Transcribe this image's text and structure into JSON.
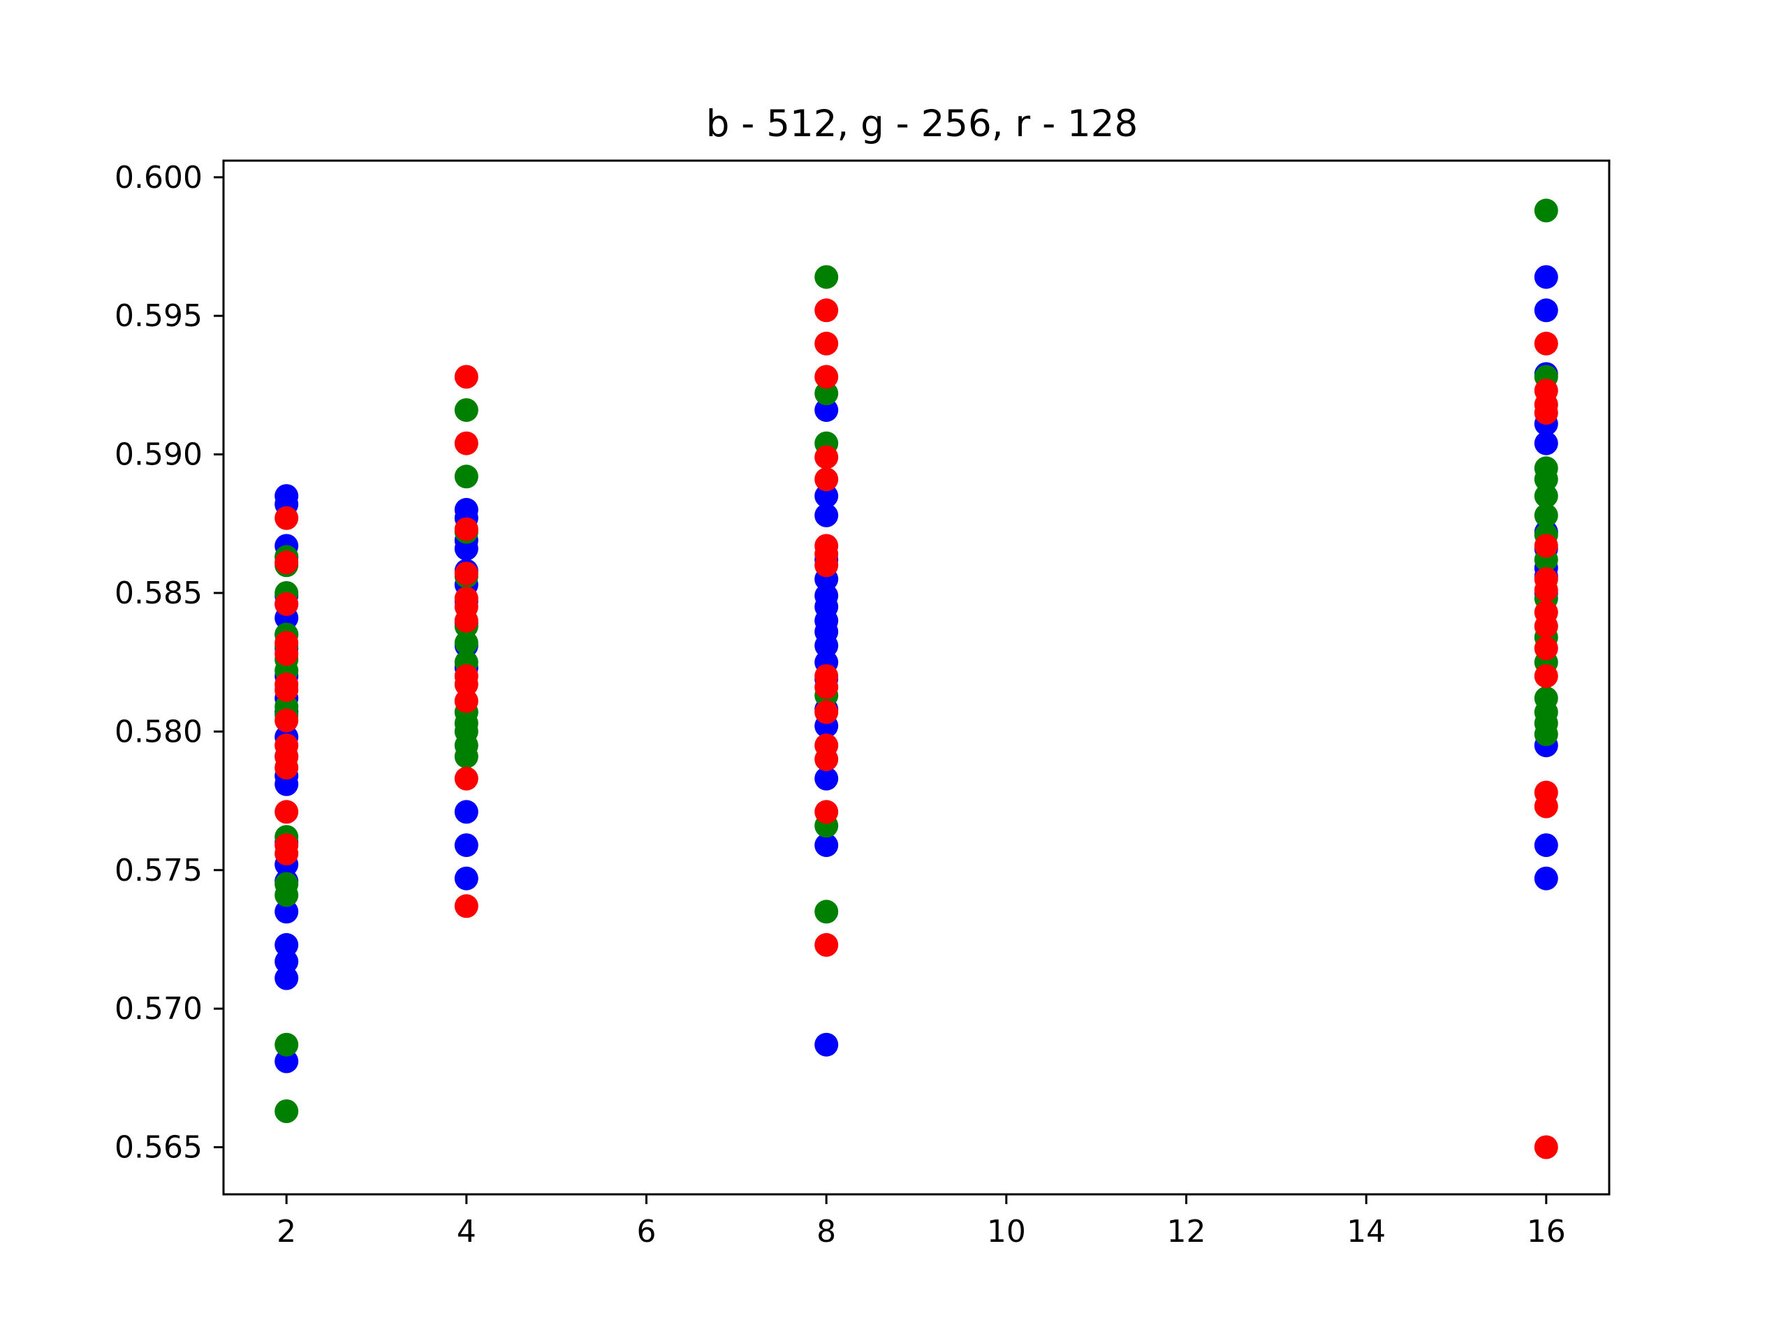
{
  "chart_data": {
    "type": "scatter",
    "title": "b - 512, g - 256, r - 128",
    "xlabel": "",
    "ylabel": "",
    "xlim": [
      1.3,
      16.7
    ],
    "ylim": [
      0.5633,
      0.6006
    ],
    "xticks": [
      2,
      4,
      6,
      8,
      10,
      12,
      14,
      16
    ],
    "yticks": [
      0.565,
      0.57,
      0.575,
      0.58,
      0.585,
      0.59,
      0.595,
      0.6
    ],
    "xtick_labels": [
      "2",
      "4",
      "6",
      "8",
      "10",
      "12",
      "14",
      "16"
    ],
    "ytick_labels": [
      "0.565",
      "0.570",
      "0.575",
      "0.580",
      "0.585",
      "0.590",
      "0.595",
      "0.600"
    ],
    "grid": false,
    "series": [
      {
        "color": "#0000ff",
        "points": [
          [
            2,
            0.5885
          ],
          [
            2,
            0.5882
          ],
          [
            2,
            0.5867
          ],
          [
            2,
            0.5863
          ],
          [
            2,
            0.5849
          ],
          [
            2,
            0.5846
          ],
          [
            2,
            0.5841
          ],
          [
            2,
            0.5835
          ],
          [
            2,
            0.583
          ],
          [
            2,
            0.582
          ],
          [
            2,
            0.5812
          ],
          [
            2,
            0.5807
          ],
          [
            2,
            0.5798
          ],
          [
            2,
            0.5791
          ],
          [
            2,
            0.5784
          ],
          [
            2,
            0.5781
          ],
          [
            2,
            0.576
          ],
          [
            2,
            0.5752
          ],
          [
            2,
            0.5746
          ],
          [
            2,
            0.5735
          ],
          [
            2,
            0.5723
          ],
          [
            2,
            0.5717
          ],
          [
            2,
            0.5711
          ],
          [
            2,
            0.5681
          ],
          [
            4,
            0.588
          ],
          [
            4,
            0.5877
          ],
          [
            4,
            0.5869
          ],
          [
            4,
            0.5866
          ],
          [
            4,
            0.5858
          ],
          [
            4,
            0.5853
          ],
          [
            4,
            0.5847
          ],
          [
            4,
            0.5839
          ],
          [
            4,
            0.5831
          ],
          [
            4,
            0.5823
          ],
          [
            4,
            0.5771
          ],
          [
            4,
            0.5759
          ],
          [
            4,
            0.5747
          ],
          [
            8,
            0.5916
          ],
          [
            8,
            0.5885
          ],
          [
            8,
            0.5878
          ],
          [
            8,
            0.5862
          ],
          [
            8,
            0.5855
          ],
          [
            8,
            0.5849
          ],
          [
            8,
            0.5845
          ],
          [
            8,
            0.584
          ],
          [
            8,
            0.5836
          ],
          [
            8,
            0.5831
          ],
          [
            8,
            0.5825
          ],
          [
            8,
            0.5819
          ],
          [
            8,
            0.5808
          ],
          [
            8,
            0.5802
          ],
          [
            8,
            0.5783
          ],
          [
            8,
            0.5759
          ],
          [
            8,
            0.5687
          ],
          [
            16,
            0.5964
          ],
          [
            16,
            0.5952
          ],
          [
            16,
            0.5929
          ],
          [
            16,
            0.5911
          ],
          [
            16,
            0.5904
          ],
          [
            16,
            0.5872
          ],
          [
            16,
            0.5866
          ],
          [
            16,
            0.5859
          ],
          [
            16,
            0.5856
          ],
          [
            16,
            0.585
          ],
          [
            16,
            0.5795
          ],
          [
            16,
            0.5759
          ],
          [
            16,
            0.5747
          ]
        ]
      },
      {
        "color": "#008000",
        "points": [
          [
            2,
            0.5863
          ],
          [
            2,
            0.586
          ],
          [
            2,
            0.585
          ],
          [
            2,
            0.5835
          ],
          [
            2,
            0.5831
          ],
          [
            2,
            0.5826
          ],
          [
            2,
            0.5822
          ],
          [
            2,
            0.5809
          ],
          [
            2,
            0.5806
          ],
          [
            2,
            0.5762
          ],
          [
            2,
            0.5745
          ],
          [
            2,
            0.5741
          ],
          [
            2,
            0.5687
          ],
          [
            2,
            0.5663
          ],
          [
            4,
            0.5916
          ],
          [
            4,
            0.5892
          ],
          [
            4,
            0.5872
          ],
          [
            4,
            0.5856
          ],
          [
            4,
            0.5838
          ],
          [
            4,
            0.5832
          ],
          [
            4,
            0.5825
          ],
          [
            4,
            0.5807
          ],
          [
            4,
            0.5803
          ],
          [
            4,
            0.58
          ],
          [
            4,
            0.5795
          ],
          [
            4,
            0.5791
          ],
          [
            8,
            0.5964
          ],
          [
            8,
            0.5922
          ],
          [
            8,
            0.5904
          ],
          [
            8,
            0.5813
          ],
          [
            8,
            0.5766
          ],
          [
            8,
            0.5735
          ],
          [
            16,
            0.5988
          ],
          [
            16,
            0.5928
          ],
          [
            16,
            0.5895
          ],
          [
            16,
            0.5891
          ],
          [
            16,
            0.5885
          ],
          [
            16,
            0.5878
          ],
          [
            16,
            0.5871
          ],
          [
            16,
            0.5862
          ],
          [
            16,
            0.5848
          ],
          [
            16,
            0.5834
          ],
          [
            16,
            0.5825
          ],
          [
            16,
            0.5812
          ],
          [
            16,
            0.5807
          ],
          [
            16,
            0.5803
          ],
          [
            16,
            0.5799
          ]
        ]
      },
      {
        "color": "#ff0000",
        "points": [
          [
            2,
            0.5877
          ],
          [
            2,
            0.5861
          ],
          [
            2,
            0.5846
          ],
          [
            2,
            0.5832
          ],
          [
            2,
            0.5828
          ],
          [
            2,
            0.5817
          ],
          [
            2,
            0.5815
          ],
          [
            2,
            0.5804
          ],
          [
            2,
            0.5795
          ],
          [
            2,
            0.5791
          ],
          [
            2,
            0.5787
          ],
          [
            2,
            0.5771
          ],
          [
            2,
            0.5759
          ],
          [
            2,
            0.5756
          ],
          [
            4,
            0.5928
          ],
          [
            4,
            0.5904
          ],
          [
            4,
            0.5873
          ],
          [
            4,
            0.5857
          ],
          [
            4,
            0.5848
          ],
          [
            4,
            0.5845
          ],
          [
            4,
            0.584
          ],
          [
            4,
            0.582
          ],
          [
            4,
            0.5817
          ],
          [
            4,
            0.5811
          ],
          [
            4,
            0.5783
          ],
          [
            4,
            0.5737
          ],
          [
            8,
            0.5952
          ],
          [
            8,
            0.594
          ],
          [
            8,
            0.5928
          ],
          [
            8,
            0.5899
          ],
          [
            8,
            0.5891
          ],
          [
            8,
            0.5867
          ],
          [
            8,
            0.5864
          ],
          [
            8,
            0.586
          ],
          [
            8,
            0.582
          ],
          [
            8,
            0.5816
          ],
          [
            8,
            0.5807
          ],
          [
            8,
            0.5795
          ],
          [
            8,
            0.579
          ],
          [
            8,
            0.5771
          ],
          [
            8,
            0.5723
          ],
          [
            16,
            0.594
          ],
          [
            16,
            0.5923
          ],
          [
            16,
            0.5918
          ],
          [
            16,
            0.5915
          ],
          [
            16,
            0.5867
          ],
          [
            16,
            0.5855
          ],
          [
            16,
            0.5851
          ],
          [
            16,
            0.5843
          ],
          [
            16,
            0.5838
          ],
          [
            16,
            0.583
          ],
          [
            16,
            0.582
          ],
          [
            16,
            0.5778
          ],
          [
            16,
            0.5773
          ],
          [
            16,
            0.565
          ]
        ]
      }
    ]
  }
}
